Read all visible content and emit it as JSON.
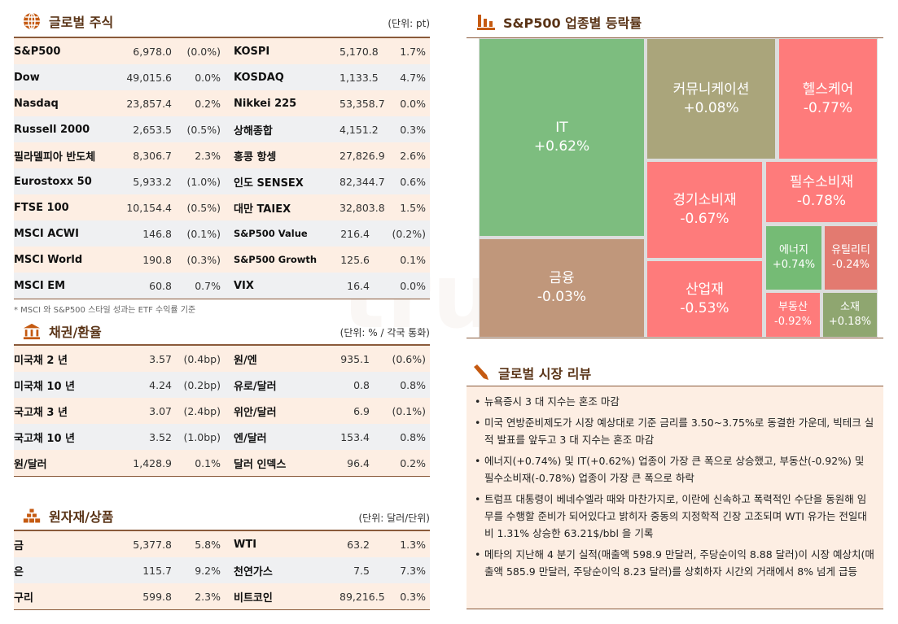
{
  "stocks": {
    "title": "글로벌 주식",
    "unit": "(단위: pt)",
    "footnote": "* MSCI 와 S&P500 스타일 성과는 ETF 수익률 기준",
    "rows": [
      {
        "n1": "S&P500",
        "v1": "6,978.0",
        "p1": "(0.0%)",
        "n2": "KOSPI",
        "v2": "5,170.8",
        "p2": "1.7%"
      },
      {
        "n1": "Dow",
        "v1": "49,015.6",
        "p1": "0.0%",
        "n2": "KOSDAQ",
        "v2": "1,133.5",
        "p2": "4.7%"
      },
      {
        "n1": "Nasdaq",
        "v1": "23,857.4",
        "p1": "0.2%",
        "n2": "Nikkei 225",
        "v2": "53,358.7",
        "p2": "0.0%"
      },
      {
        "n1": "Russell 2000",
        "v1": "2,653.5",
        "p1": "(0.5%)",
        "n2": "상해종합",
        "v2": "4,151.2",
        "p2": "0.3%"
      },
      {
        "n1": "필라델피아 반도체",
        "v1": "8,306.7",
        "p1": "2.3%",
        "n2": "홍콩 항셍",
        "v2": "27,826.9",
        "p2": "2.6%"
      },
      {
        "n1": "Eurostoxx 50",
        "v1": "5,933.2",
        "p1": "(1.0%)",
        "n2": "인도 SENSEX",
        "v2": "82,344.7",
        "p2": "0.6%"
      },
      {
        "n1": "FTSE 100",
        "v1": "10,154.4",
        "p1": "(0.5%)",
        "n2": "대만 TAIEX",
        "v2": "32,803.8",
        "p2": "1.5%"
      },
      {
        "n1": "MSCI ACWI",
        "v1": "146.8",
        "p1": "(0.1%)",
        "n2": "S&P500 Value",
        "v2": "216.4",
        "p2": "(0.2%)"
      },
      {
        "n1": "MSCI World",
        "v1": "190.8",
        "p1": "(0.3%)",
        "n2": "S&P500 Growth",
        "v2": "125.6",
        "p2": "0.1%"
      },
      {
        "n1": "MSCI EM",
        "v1": "60.8",
        "p1": "0.7%",
        "n2": "VIX",
        "v2": "16.4",
        "p2": "0.0%"
      }
    ]
  },
  "bonds": {
    "title": "채권/환율",
    "unit": "(단위: % / 각국 통화)",
    "rows": [
      {
        "n1": "미국채 2 년",
        "v1": "3.57",
        "p1": "(0.4bp)",
        "n2": "원/엔",
        "v2": "935.1",
        "p2": "(0.6%)"
      },
      {
        "n1": "미국채 10 년",
        "v1": "4.24",
        "p1": "(0.2bp)",
        "n2": "유로/달러",
        "v2": "0.8",
        "p2": "0.8%"
      },
      {
        "n1": "국고채 3 년",
        "v1": "3.07",
        "p1": "(2.4bp)",
        "n2": "위안/달러",
        "v2": "6.9",
        "p2": "(0.1%)"
      },
      {
        "n1": "국고채 10 년",
        "v1": "3.52",
        "p1": "(1.0bp)",
        "n2": "엔/달러",
        "v2": "153.4",
        "p2": "0.8%"
      },
      {
        "n1": "원/달러",
        "v1": "1,428.9",
        "p1": "0.1%",
        "n2": "달러 인덱스",
        "v2": "96.4",
        "p2": "0.2%"
      }
    ]
  },
  "commodities": {
    "title": "원자재/상품",
    "unit": "(단위: 달러/단위)",
    "rows": [
      {
        "n1": "금",
        "v1": "5,377.8",
        "p1": "5.8%",
        "n2": "WTI",
        "v2": "63.2",
        "p2": "1.3%"
      },
      {
        "n1": "은",
        "v1": "115.7",
        "p1": "9.2%",
        "n2": "천연가스",
        "v2": "7.5",
        "p2": "7.3%"
      },
      {
        "n1": "구리",
        "v1": "599.8",
        "p1": "2.3%",
        "n2": "비트코인",
        "v2": "89,216.5",
        "p2": "0.3%"
      }
    ]
  },
  "sectors": {
    "title": "S&P500 업종별 등락률",
    "tiles": [
      {
        "name": "IT",
        "change": "+0.62%",
        "color": "#7dbd7f"
      },
      {
        "name": "금융",
        "change": "-0.03%",
        "color": "#c0977b"
      },
      {
        "name": "커뮤니케이션",
        "change": "+0.08%",
        "color": "#aaa57b"
      },
      {
        "name": "헬스케어",
        "change": "-0.77%",
        "color": "#fe7b7b"
      },
      {
        "name": "경기소비재",
        "change": "-0.67%",
        "color": "#fe7b7b"
      },
      {
        "name": "필수소비재",
        "change": "-0.78%",
        "color": "#fe7b7b"
      },
      {
        "name": "에너지",
        "change": "+0.74%",
        "color": "#75bb75"
      },
      {
        "name": "유틸리티",
        "change": "-0.24%",
        "color": "#e37a70"
      },
      {
        "name": "산업재",
        "change": "-0.53%",
        "color": "#fe7b7b"
      },
      {
        "name": "부동산",
        "change": "-0.92%",
        "color": "#fe7b7b"
      },
      {
        "name": "소재",
        "change": "+0.18%",
        "color": "#8fa670"
      }
    ]
  },
  "review": {
    "title": "글로벌 시장 리뷰",
    "items": [
      "뉴욕증시 3 대 지수는 혼조 마감",
      "미국 연방준비제도가 시장 예상대로 기준 금리를 3.50~3.75%로 동결한 가운데, 빅테크 실적 발표를 앞두고 3 대 지수는 혼조 마감",
      "에너지(+0.74%) 및 IT(+0.62%) 업종이 가장 큰 폭으로 상승했고, 부동산(-0.92%) 및 필수소비재(-0.78%) 업종이 가장 큰 폭으로 하락",
      "트럼프 대통령이 베네수엘라 때와 마찬가지로, 이란에 신속하고 폭력적인 수단을 동원해 임무를 수행할 준비가 되어있다고 밝히자 중동의 지정학적 긴장 고조되며 WTI 유가는 전일대비 1.31% 상승한 63.21$/bbl 을 기록",
      "메타의 지난해 4 분기 실적(매출액 598.9 만달러, 주당순이익 8.88 달러)이 시장 예상치(매출액 585.9 만달러, 주당순이익 8.23 달러)를 상회하자 시간외 거래에서 8% 넘게 급등"
    ]
  },
  "watermark": "true friend",
  "colors": {
    "accent": "#c55a11",
    "row_peach": "#fdeee3",
    "row_gray": "#eff0f2",
    "title": "#5a3417"
  }
}
